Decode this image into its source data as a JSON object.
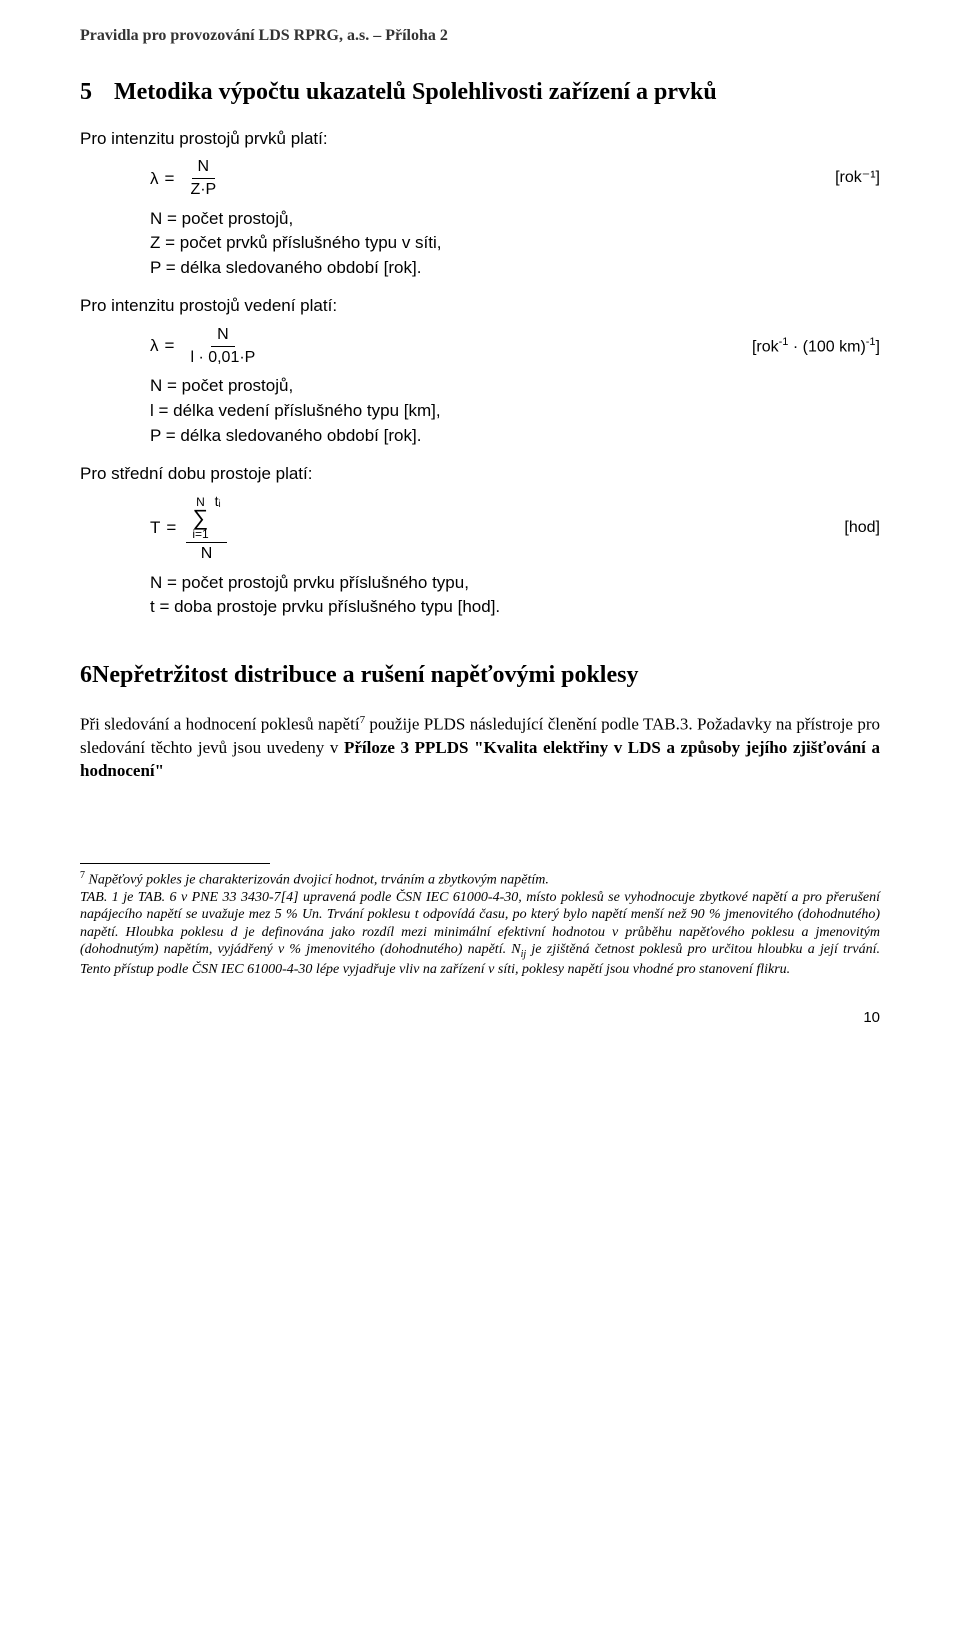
{
  "header": "Pravidla pro provozování LDS RPRG, a.s. – Příloha 2",
  "section5": {
    "num": "5",
    "title": "Metodika výpočtu ukazatelů Spolehlivosti zařízení a prvků"
  },
  "block1": {
    "intro": "Pro intenzitu prostojů prvků platí:",
    "lambda": "λ",
    "eq": "=",
    "num": "N",
    "den": "Z·P",
    "unit": "[rok⁻¹]",
    "defs": {
      "l1": "N = počet prostojů,",
      "l2": "Z = počet prvků příslušného typu v síti,",
      "l3": "P = délka sledovaného období [rok]."
    }
  },
  "block2": {
    "intro": "Pro intenzitu prostojů vedení platí:",
    "lambda": "λ",
    "eq": "=",
    "num": "N",
    "den": "l · 0,01·P",
    "unit_pre": "[rok",
    "unit_sup1": "-1",
    "unit_mid": " · (100 km)",
    "unit_sup2": "-1",
    "unit_suf": "]",
    "defs": {
      "l1": "N = počet prostojů,",
      "l2": "l  = délka vedení příslušného typu [km],",
      "l3": "P = délka sledovaného období [rok]."
    }
  },
  "block3": {
    "intro": "Pro střední dobu prostoje platí:",
    "T": "T",
    "eq": "=",
    "sigma_top": "N",
    "sigma": "∑",
    "sigma_bot": "i=1",
    "ti": "tᵢ",
    "den": "N",
    "unit": "[hod]",
    "defs": {
      "l1": "N = počet prostojů prvku příslušného typu,",
      "l2": "t  = doba prostoje prvku příslušného typu [hod]."
    }
  },
  "section6": {
    "num": "6",
    "title": "Nepřetržitost distribuce a rušení napěťovými poklesy"
  },
  "para6": {
    "t1": "Při sledování a hodnocení poklesů napětí",
    "sup": "7",
    "t2": " použije PLDS následující členění podle TAB.3. Požadavky na přístroje pro sledování těchto jevů jsou uvedeny v ",
    "bold": "Příloze 3 PPLDS \"Kvalita elektřiny v LDS a způsoby jejího zjišťování a hodnocení\""
  },
  "footnote": {
    "sup": "7",
    "t1": " Napěťový pokles je charakterizován dvojicí hodnot, trváním a zbytkovým napětím.",
    "t2a": "TAB. 1 je TAB. 6 v PNE 33 3430-7[4] upravená podle ČSN IEC 61000-4-30, místo poklesů se vyhodnocuje zbytkové napětí a pro přerušení napájecího napětí se uvažuje mez 5 % Un. Trvání poklesu t odpovídá času, po který bylo napětí menší než 90 % jmenovitého (dohodnutého) napětí. Hloubka poklesu d je definována jako rozdíl mezi minimální efektivní hodnotou v průběhu napěťového poklesu a jmenovitým (dohodnutým) napětím, vyjádřený v % jmenovitého (dohodnutého) napětí. N",
    "sub": "ij",
    "t2b": " je zjištěná četnost poklesů pro určitou hloubku a její trvání. Tento přístup podle ČSN IEC 61000-4-30 lépe vyjadřuje vliv na zařízení v síti, poklesy napětí jsou vhodné pro stanovení flikru."
  },
  "page": "10"
}
